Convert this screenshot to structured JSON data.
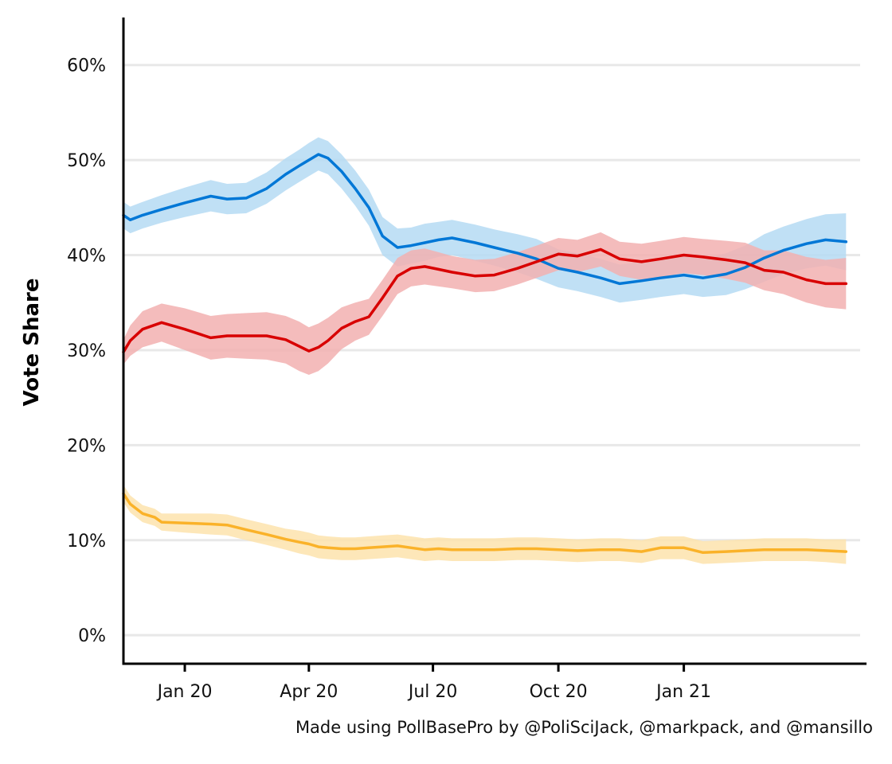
{
  "caption": "Made using PollBasePro by @PoliSciJack, @markpack, and @mansillo",
  "chart_data": {
    "type": "line",
    "title": "",
    "xlabel": "",
    "ylabel": "Vote Share",
    "ylim": [
      -3,
      65
    ],
    "y_ticks": [
      {
        "value": 0,
        "label": "0%"
      },
      {
        "value": 10,
        "label": "10%"
      },
      {
        "value": 20,
        "label": "20%"
      },
      {
        "value": 30,
        "label": "30%"
      },
      {
        "value": 40,
        "label": "40%"
      },
      {
        "value": 50,
        "label": "50%"
      },
      {
        "value": 60,
        "label": "60%"
      }
    ],
    "x_ticks": [
      {
        "value": "2020-01-01",
        "label": "Jan 20"
      },
      {
        "value": "2020-04-01",
        "label": "Apr 20"
      },
      {
        "value": "2020-07-01",
        "label": "Jul 20"
      },
      {
        "value": "2020-10-01",
        "label": "Oct 20"
      },
      {
        "value": "2021-01-01",
        "label": "Jan 21"
      }
    ],
    "xlim": [
      "2019-11-17",
      "2021-05-15"
    ],
    "grid": "horizontal",
    "legend": "none",
    "series": [
      {
        "color": "#0077d6",
        "band_color": "#b5dbf3",
        "x": [
          "2019-11-17",
          "2019-11-22",
          "2019-12-01",
          "2019-12-15",
          "2020-01-01",
          "2020-01-20",
          "2020-02-01",
          "2020-02-15",
          "2020-03-01",
          "2020-03-15",
          "2020-03-25",
          "2020-04-01",
          "2020-04-08",
          "2020-04-15",
          "2020-04-25",
          "2020-05-05",
          "2020-05-15",
          "2020-05-25",
          "2020-06-05",
          "2020-06-15",
          "2020-06-25",
          "2020-07-05",
          "2020-07-15",
          "2020-08-01",
          "2020-08-15",
          "2020-09-01",
          "2020-09-15",
          "2020-10-01",
          "2020-10-15",
          "2020-11-01",
          "2020-11-15",
          "2020-12-01",
          "2020-12-15",
          "2021-01-01",
          "2021-01-15",
          "2021-02-01",
          "2021-02-15",
          "2021-03-01",
          "2021-03-15",
          "2021-04-01",
          "2021-04-15",
          "2021-04-30"
        ],
        "values": [
          44.2,
          43.7,
          44.2,
          44.8,
          45.5,
          46.2,
          45.9,
          46.0,
          47.0,
          48.5,
          49.4,
          50.0,
          50.6,
          50.2,
          48.8,
          47.0,
          45.0,
          42.0,
          40.8,
          41.0,
          41.3,
          41.6,
          41.8,
          41.3,
          40.8,
          40.2,
          39.6,
          38.6,
          38.2,
          37.6,
          37.0,
          37.3,
          37.6,
          37.9,
          37.6,
          38.0,
          38.7,
          39.7,
          40.5,
          41.2,
          41.6,
          41.4
        ],
        "lower": [
          42.8,
          42.3,
          42.8,
          43.4,
          44.0,
          44.6,
          44.3,
          44.4,
          45.4,
          46.8,
          47.7,
          48.3,
          48.9,
          48.5,
          47.0,
          45.2,
          43.1,
          40.0,
          38.8,
          39.1,
          39.4,
          39.8,
          40.0,
          39.4,
          38.9,
          38.2,
          37.5,
          36.6,
          36.2,
          35.6,
          35.0,
          35.3,
          35.6,
          35.9,
          35.6,
          35.8,
          36.4,
          37.2,
          38.0,
          38.6,
          38.9,
          38.4
        ],
        "upper": [
          45.6,
          45.1,
          45.6,
          46.3,
          47.1,
          47.9,
          47.5,
          47.6,
          48.7,
          50.2,
          51.1,
          51.8,
          52.4,
          52.0,
          50.6,
          48.9,
          46.9,
          44.0,
          42.8,
          42.9,
          43.3,
          43.5,
          43.7,
          43.2,
          42.7,
          42.2,
          41.7,
          40.6,
          40.2,
          39.6,
          39.0,
          39.3,
          39.6,
          39.9,
          39.6,
          40.2,
          41.0,
          42.2,
          43.0,
          43.8,
          44.3,
          44.4
        ]
      },
      {
        "color": "#d80000",
        "band_color": "#f2b0b0",
        "x": [
          "2019-11-17",
          "2019-11-22",
          "2019-12-01",
          "2019-12-15",
          "2020-01-01",
          "2020-01-20",
          "2020-02-01",
          "2020-02-15",
          "2020-03-01",
          "2020-03-15",
          "2020-03-25",
          "2020-04-01",
          "2020-04-08",
          "2020-04-15",
          "2020-04-25",
          "2020-05-05",
          "2020-05-15",
          "2020-05-25",
          "2020-06-05",
          "2020-06-15",
          "2020-06-25",
          "2020-07-05",
          "2020-07-15",
          "2020-08-01",
          "2020-08-15",
          "2020-09-01",
          "2020-09-15",
          "2020-10-01",
          "2020-10-15",
          "2020-11-01",
          "2020-11-15",
          "2020-12-01",
          "2020-12-15",
          "2021-01-01",
          "2021-01-15",
          "2021-02-01",
          "2021-02-15",
          "2021-03-01",
          "2021-03-15",
          "2021-04-01",
          "2021-04-15",
          "2021-04-30"
        ],
        "values": [
          29.8,
          31.0,
          32.2,
          32.9,
          32.2,
          31.3,
          31.5,
          31.5,
          31.5,
          31.1,
          30.4,
          29.9,
          30.3,
          31.0,
          32.3,
          33.0,
          33.5,
          35.5,
          37.8,
          38.6,
          38.8,
          38.5,
          38.2,
          37.8,
          37.9,
          38.6,
          39.3,
          40.1,
          39.9,
          40.6,
          39.6,
          39.3,
          39.6,
          40.0,
          39.8,
          39.5,
          39.2,
          38.4,
          38.2,
          37.4,
          37.0,
          37.0
        ],
        "lower": [
          28.5,
          29.4,
          30.3,
          30.9,
          30.0,
          29.0,
          29.2,
          29.1,
          29.0,
          28.6,
          27.8,
          27.4,
          27.8,
          28.6,
          30.1,
          31.0,
          31.6,
          33.6,
          35.9,
          36.7,
          36.9,
          36.7,
          36.5,
          36.1,
          36.2,
          36.9,
          37.6,
          38.4,
          38.2,
          38.8,
          37.8,
          37.4,
          37.7,
          38.1,
          37.9,
          37.5,
          37.1,
          36.3,
          35.9,
          35.0,
          34.5,
          34.3
        ],
        "upper": [
          31.1,
          32.6,
          34.1,
          34.9,
          34.4,
          33.6,
          33.8,
          33.9,
          34.0,
          33.6,
          33.0,
          32.4,
          32.8,
          33.4,
          34.5,
          35.0,
          35.4,
          37.4,
          39.7,
          40.5,
          40.7,
          40.3,
          39.9,
          39.5,
          39.6,
          40.3,
          41.0,
          41.8,
          41.6,
          42.4,
          41.4,
          41.2,
          41.5,
          41.9,
          41.7,
          41.5,
          41.3,
          40.5,
          40.5,
          39.8,
          39.5,
          39.7
        ]
      },
      {
        "color": "#fab229",
        "band_color": "#fde3ad",
        "x": [
          "2019-11-17",
          "2019-11-22",
          "2019-12-01",
          "2019-12-10",
          "2019-12-15",
          "2020-01-01",
          "2020-01-20",
          "2020-02-01",
          "2020-02-15",
          "2020-03-01",
          "2020-03-15",
          "2020-03-25",
          "2020-04-01",
          "2020-04-08",
          "2020-04-15",
          "2020-04-25",
          "2020-05-05",
          "2020-05-15",
          "2020-05-25",
          "2020-06-05",
          "2020-06-15",
          "2020-06-25",
          "2020-07-05",
          "2020-07-15",
          "2020-08-01",
          "2020-08-15",
          "2020-09-01",
          "2020-09-15",
          "2020-10-01",
          "2020-10-15",
          "2020-11-01",
          "2020-11-15",
          "2020-12-01",
          "2020-12-15",
          "2021-01-01",
          "2021-01-15",
          "2021-02-01",
          "2021-02-15",
          "2021-03-01",
          "2021-03-15",
          "2021-04-01",
          "2021-04-15",
          "2021-04-30"
        ],
        "values": [
          14.9,
          13.8,
          12.8,
          12.4,
          11.9,
          11.8,
          11.7,
          11.6,
          11.1,
          10.6,
          10.1,
          9.8,
          9.6,
          9.3,
          9.2,
          9.1,
          9.1,
          9.2,
          9.3,
          9.4,
          9.2,
          9.0,
          9.1,
          9.0,
          9.0,
          9.0,
          9.1,
          9.1,
          9.0,
          8.9,
          9.0,
          9.0,
          8.8,
          9.2,
          9.2,
          8.7,
          8.8,
          8.9,
          9.0,
          9.0,
          9.0,
          8.9,
          8.8
        ],
        "lower": [
          14.0,
          12.9,
          11.9,
          11.5,
          11.0,
          10.8,
          10.6,
          10.5,
          10.0,
          9.5,
          9.0,
          8.6,
          8.4,
          8.1,
          8.0,
          7.9,
          7.9,
          8.0,
          8.1,
          8.2,
          8.0,
          7.8,
          7.9,
          7.8,
          7.8,
          7.8,
          7.9,
          7.9,
          7.8,
          7.7,
          7.8,
          7.8,
          7.6,
          8.0,
          8.0,
          7.5,
          7.6,
          7.7,
          7.8,
          7.8,
          7.8,
          7.7,
          7.5
        ],
        "upper": [
          15.8,
          14.7,
          13.7,
          13.3,
          12.8,
          12.8,
          12.8,
          12.7,
          12.2,
          11.7,
          11.2,
          11.0,
          10.8,
          10.5,
          10.4,
          10.3,
          10.3,
          10.4,
          10.5,
          10.6,
          10.4,
          10.2,
          10.3,
          10.2,
          10.2,
          10.2,
          10.3,
          10.3,
          10.2,
          10.1,
          10.2,
          10.2,
          10.0,
          10.4,
          10.4,
          9.9,
          10.0,
          10.1,
          10.2,
          10.2,
          10.2,
          10.1,
          10.1
        ]
      }
    ]
  }
}
